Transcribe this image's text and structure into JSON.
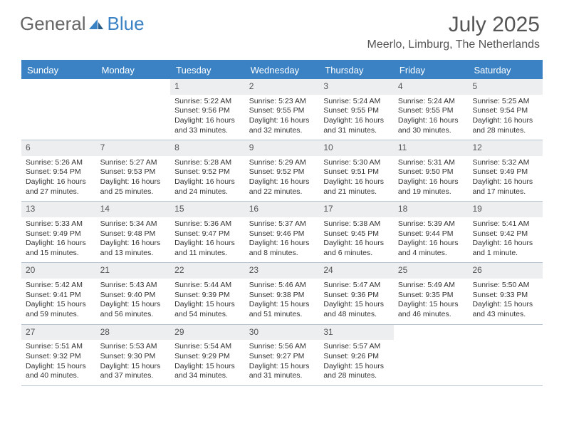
{
  "logo": {
    "part1": "General",
    "part2": "Blue"
  },
  "title": "July 2025",
  "location": "Meerlo, Limburg, The Netherlands",
  "colors": {
    "accent": "#3b82c4",
    "daynum_bg": "#eceef0",
    "border": "#b8c4d0",
    "text": "#333333",
    "muted": "#555555",
    "background": "#ffffff"
  },
  "dayheads": [
    "Sunday",
    "Monday",
    "Tuesday",
    "Wednesday",
    "Thursday",
    "Friday",
    "Saturday"
  ],
  "weeks": [
    [
      null,
      null,
      {
        "n": "1",
        "sr": "5:22 AM",
        "ss": "9:56 PM",
        "dl": "16 hours and 33 minutes."
      },
      {
        "n": "2",
        "sr": "5:23 AM",
        "ss": "9:55 PM",
        "dl": "16 hours and 32 minutes."
      },
      {
        "n": "3",
        "sr": "5:24 AM",
        "ss": "9:55 PM",
        "dl": "16 hours and 31 minutes."
      },
      {
        "n": "4",
        "sr": "5:24 AM",
        "ss": "9:55 PM",
        "dl": "16 hours and 30 minutes."
      },
      {
        "n": "5",
        "sr": "5:25 AM",
        "ss": "9:54 PM",
        "dl": "16 hours and 28 minutes."
      }
    ],
    [
      {
        "n": "6",
        "sr": "5:26 AM",
        "ss": "9:54 PM",
        "dl": "16 hours and 27 minutes."
      },
      {
        "n": "7",
        "sr": "5:27 AM",
        "ss": "9:53 PM",
        "dl": "16 hours and 25 minutes."
      },
      {
        "n": "8",
        "sr": "5:28 AM",
        "ss": "9:52 PM",
        "dl": "16 hours and 24 minutes."
      },
      {
        "n": "9",
        "sr": "5:29 AM",
        "ss": "9:52 PM",
        "dl": "16 hours and 22 minutes."
      },
      {
        "n": "10",
        "sr": "5:30 AM",
        "ss": "9:51 PM",
        "dl": "16 hours and 21 minutes."
      },
      {
        "n": "11",
        "sr": "5:31 AM",
        "ss": "9:50 PM",
        "dl": "16 hours and 19 minutes."
      },
      {
        "n": "12",
        "sr": "5:32 AM",
        "ss": "9:49 PM",
        "dl": "16 hours and 17 minutes."
      }
    ],
    [
      {
        "n": "13",
        "sr": "5:33 AM",
        "ss": "9:49 PM",
        "dl": "16 hours and 15 minutes."
      },
      {
        "n": "14",
        "sr": "5:34 AM",
        "ss": "9:48 PM",
        "dl": "16 hours and 13 minutes."
      },
      {
        "n": "15",
        "sr": "5:36 AM",
        "ss": "9:47 PM",
        "dl": "16 hours and 11 minutes."
      },
      {
        "n": "16",
        "sr": "5:37 AM",
        "ss": "9:46 PM",
        "dl": "16 hours and 8 minutes."
      },
      {
        "n": "17",
        "sr": "5:38 AM",
        "ss": "9:45 PM",
        "dl": "16 hours and 6 minutes."
      },
      {
        "n": "18",
        "sr": "5:39 AM",
        "ss": "9:44 PM",
        "dl": "16 hours and 4 minutes."
      },
      {
        "n": "19",
        "sr": "5:41 AM",
        "ss": "9:42 PM",
        "dl": "16 hours and 1 minute."
      }
    ],
    [
      {
        "n": "20",
        "sr": "5:42 AM",
        "ss": "9:41 PM",
        "dl": "15 hours and 59 minutes."
      },
      {
        "n": "21",
        "sr": "5:43 AM",
        "ss": "9:40 PM",
        "dl": "15 hours and 56 minutes."
      },
      {
        "n": "22",
        "sr": "5:44 AM",
        "ss": "9:39 PM",
        "dl": "15 hours and 54 minutes."
      },
      {
        "n": "23",
        "sr": "5:46 AM",
        "ss": "9:38 PM",
        "dl": "15 hours and 51 minutes."
      },
      {
        "n": "24",
        "sr": "5:47 AM",
        "ss": "9:36 PM",
        "dl": "15 hours and 48 minutes."
      },
      {
        "n": "25",
        "sr": "5:49 AM",
        "ss": "9:35 PM",
        "dl": "15 hours and 46 minutes."
      },
      {
        "n": "26",
        "sr": "5:50 AM",
        "ss": "9:33 PM",
        "dl": "15 hours and 43 minutes."
      }
    ],
    [
      {
        "n": "27",
        "sr": "5:51 AM",
        "ss": "9:32 PM",
        "dl": "15 hours and 40 minutes."
      },
      {
        "n": "28",
        "sr": "5:53 AM",
        "ss": "9:30 PM",
        "dl": "15 hours and 37 minutes."
      },
      {
        "n": "29",
        "sr": "5:54 AM",
        "ss": "9:29 PM",
        "dl": "15 hours and 34 minutes."
      },
      {
        "n": "30",
        "sr": "5:56 AM",
        "ss": "9:27 PM",
        "dl": "15 hours and 31 minutes."
      },
      {
        "n": "31",
        "sr": "5:57 AM",
        "ss": "9:26 PM",
        "dl": "15 hours and 28 minutes."
      },
      null,
      null
    ]
  ],
  "labels": {
    "sunrise": "Sunrise:",
    "sunset": "Sunset:",
    "daylight": "Daylight:"
  }
}
